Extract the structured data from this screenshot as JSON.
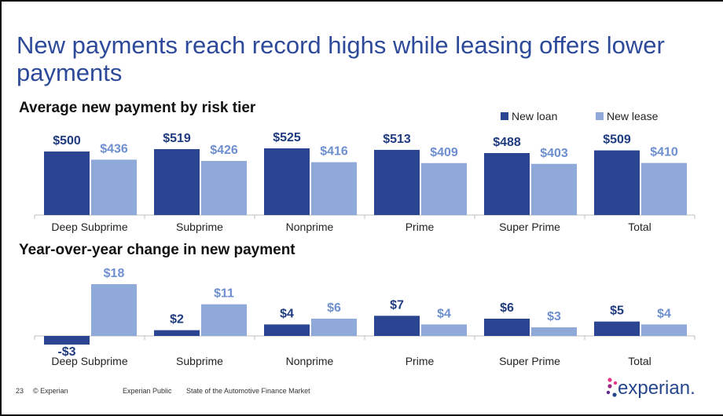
{
  "title": "New payments reach record highs while leasing offers lower payments",
  "legend": [
    {
      "label": "New loan",
      "color": "#2b4593"
    },
    {
      "label": "New lease",
      "color": "#8fa9d9"
    }
  ],
  "chart_data": [
    {
      "type": "bar",
      "title": "Average new payment by risk tier",
      "categories": [
        "Deep Subprime",
        "Subprime",
        "Nonprime",
        "Prime",
        "Super Prime",
        "Total"
      ],
      "series": [
        {
          "name": "New loan",
          "values": [
            500,
            519,
            525,
            513,
            488,
            509
          ],
          "labels": [
            "$500",
            "$519",
            "$525",
            "$513",
            "$488",
            "$509"
          ],
          "color": "#2b4593"
        },
        {
          "name": "New lease",
          "values": [
            436,
            426,
            416,
            409,
            403,
            410
          ],
          "labels": [
            "$436",
            "$426",
            "$416",
            "$409",
            "$403",
            "$410"
          ],
          "color": "#8fa9d9"
        }
      ],
      "ylim": [
        0,
        550
      ],
      "grid": false,
      "legend_position": "top-right"
    },
    {
      "type": "bar",
      "title": "Year-over-year change in new payment",
      "categories": [
        "Deep Subprime",
        "Subprime",
        "Nonprime",
        "Prime",
        "Super Prime",
        "Total"
      ],
      "series": [
        {
          "name": "New loan",
          "values": [
            -3,
            2,
            4,
            7,
            6,
            5
          ],
          "labels": [
            "-$3",
            "$2",
            "$4",
            "$7",
            "$6",
            "$5"
          ],
          "color": "#2b4593"
        },
        {
          "name": "New lease",
          "values": [
            18,
            11,
            6,
            4,
            3,
            4
          ],
          "labels": [
            "$18",
            "$11",
            "$6",
            "$4",
            "$3",
            "$4"
          ],
          "color": "#8fa9d9"
        }
      ],
      "ylim": [
        -3.5,
        20
      ],
      "grid": false
    }
  ],
  "footer": {
    "page": "23",
    "copyright": "© Experian",
    "classification": "Experian Public",
    "report": "State of the Automotive Finance Market"
  },
  "logo": {
    "text": "experian.",
    "dot_colors": [
      "#e63888",
      "#982881",
      "#5e2d86",
      "#26478d"
    ]
  }
}
